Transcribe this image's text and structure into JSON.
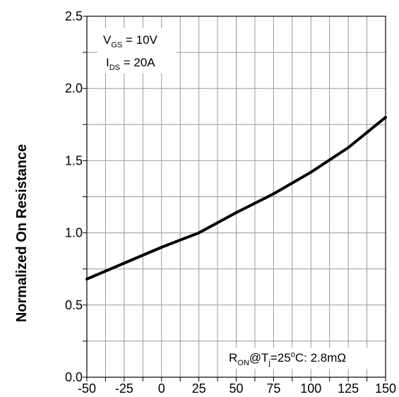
{
  "chart_data": {
    "type": "line",
    "title": "",
    "xlabel": "",
    "ylabel": "Normalized On Resistance",
    "xlim": [
      -50,
      150
    ],
    "ylim": [
      0.0,
      2.5
    ],
    "x_ticks": [
      "-50",
      "-25",
      "0",
      "25",
      "50",
      "75",
      "100",
      "125",
      "150"
    ],
    "y_ticks": [
      "0.0",
      "0.5",
      "1.0",
      "1.5",
      "2.0",
      "2.5"
    ],
    "grid": true,
    "series": [
      {
        "x": [
          -50,
          -25,
          0,
          25,
          50,
          75,
          100,
          125,
          150
        ],
        "y": [
          0.68,
          0.79,
          0.9,
          1.0,
          1.14,
          1.27,
          1.42,
          1.59,
          1.8
        ]
      }
    ],
    "line_color": "#000000",
    "grid_color": "#999999",
    "annotations": {
      "vgs": {
        "main": "V",
        "sub": "GS",
        "rest": " = 10V"
      },
      "ids": {
        "main": "I",
        "sub": "DS",
        "rest": " = 20A"
      },
      "ron": {
        "r": "R",
        "r_sub": "ON",
        "at_t": "@T",
        "t_sub": "j",
        "eq": "=25",
        "deg": "o",
        "tail": "C: 2.8mΩ"
      }
    }
  }
}
